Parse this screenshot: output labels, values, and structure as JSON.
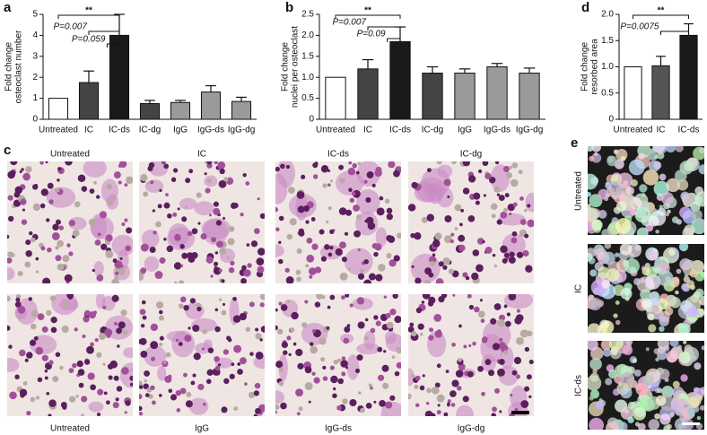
{
  "panel_labels": [
    "a",
    "b",
    "c",
    "d",
    "e"
  ],
  "chart_data": [
    {
      "type": "bar",
      "ylabel": [
        "Fold change",
        "osteoclast number"
      ],
      "categories": [
        "Untreated",
        "IC",
        "IC-ds",
        "IC-dg",
        "IgG",
        "IgG-ds",
        "IgG-dg"
      ],
      "values": [
        1,
        1.75,
        4.0,
        0.75,
        0.8,
        1.3,
        0.85
      ],
      "errors": [
        0,
        0.55,
        1.0,
        0.15,
        0.1,
        0.3,
        0.2
      ],
      "colors": [
        "#ffffff",
        "#444444",
        "#1a1a1a",
        "#444444",
        "#9a9a9a",
        "#9a9a9a",
        "#9a9a9a"
      ],
      "ylim": [
        0,
        5
      ],
      "yticks": [
        0,
        1,
        2,
        3,
        4,
        5
      ],
      "annotations": [
        "**",
        "P=0.007",
        "P=0.059"
      ]
    },
    {
      "type": "bar",
      "ylabel": [
        "Fold change",
        "nuclei per osteoclast"
      ],
      "categories": [
        "Untreated",
        "IC",
        "IC-ds",
        "IC-dg",
        "IgG",
        "IgG-ds",
        "IgG-dg"
      ],
      "values": [
        1,
        1.2,
        1.85,
        1.1,
        1.1,
        1.25,
        1.1
      ],
      "errors": [
        0,
        0.22,
        0.35,
        0.15,
        0.1,
        0.08,
        0.12
      ],
      "colors": [
        "#ffffff",
        "#444444",
        "#1a1a1a",
        "#444444",
        "#9a9a9a",
        "#9a9a9a",
        "#9a9a9a"
      ],
      "ylim": [
        0,
        2.5
      ],
      "yticks": [
        0,
        0.5,
        {
          "value": 1,
          "label": "1.0"
        },
        1.5,
        {
          "value": 2,
          "label": "2.0"
        },
        2.5
      ],
      "annotations": [
        "**",
        "P=0.007",
        "P=0.09"
      ]
    },
    {
      "type": "bar",
      "ylabel": [
        "Fold change",
        "resorbed area"
      ],
      "categories": [
        "Untreated",
        "IC",
        "IC-ds"
      ],
      "values": [
        1,
        1.02,
        1.6
      ],
      "errors": [
        0,
        0.18,
        0.22
      ],
      "colors": [
        "#ffffff",
        "#555555",
        "#1a1a1a"
      ],
      "ylim": [
        0,
        2
      ],
      "yticks": [
        0,
        0.5,
        {
          "value": 1,
          "label": "1.0"
        },
        1.5,
        {
          "value": 2,
          "label": "2.0"
        }
      ],
      "annotations": [
        "**",
        "P=0.0075"
      ]
    }
  ],
  "micrographs": {
    "top": [
      "Untreated",
      "IC",
      "IC-ds",
      "IC-dg"
    ],
    "bottom": [
      "Untreated",
      "IgG",
      "IgG-ds",
      "IgG-dg"
    ]
  },
  "resorption": {
    "rows": [
      "Untreated",
      "IC",
      "IC-ds"
    ]
  }
}
